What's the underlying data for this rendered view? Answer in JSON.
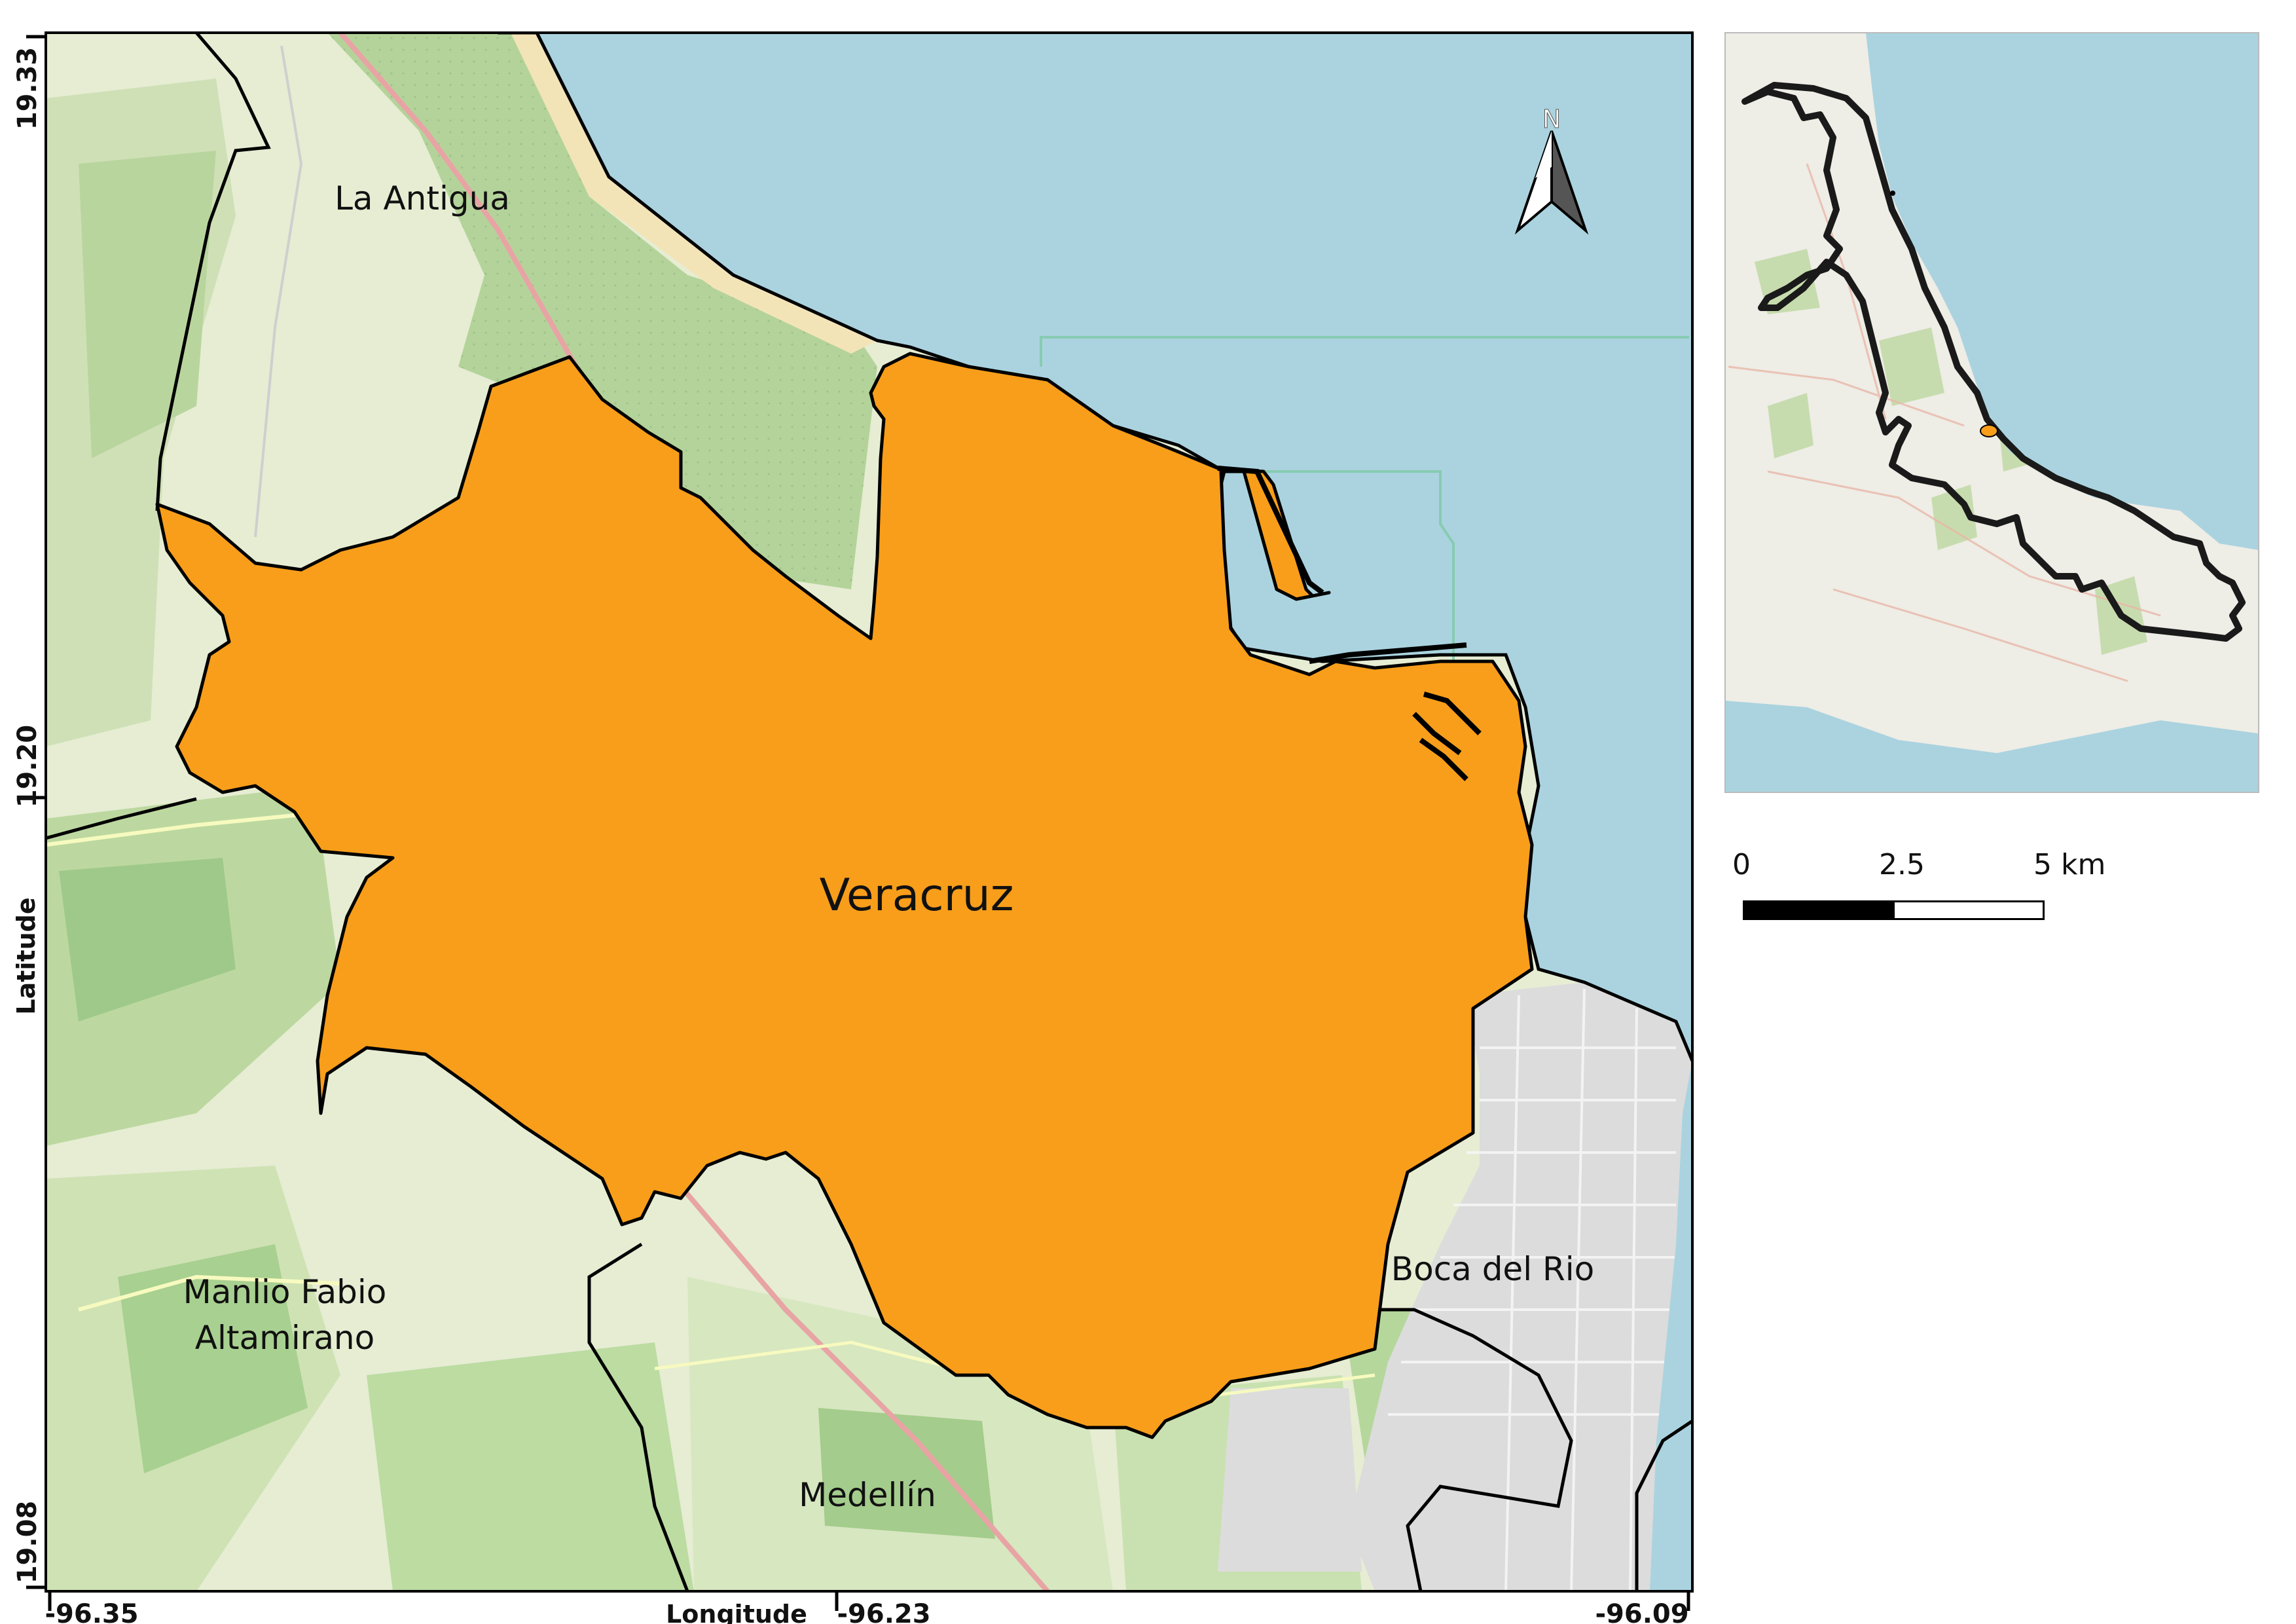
{
  "map": {
    "municipalities": {
      "focus": "Veracruz",
      "la_antigua": "La Antigua",
      "manlio_line1": "Manlio Fabio",
      "manlio_line2": "Altamirano",
      "medellin": "Medellín",
      "boca_del_rio": "Boca del Rio"
    },
    "colors": {
      "focus_fill": "#f89e1a",
      "sea": "#aad3df",
      "land": "#f2efe9",
      "forest": "#add19e",
      "urban": "#e0dfdf",
      "boundary": "#000000"
    },
    "axes": {
      "x_label": "Longitude",
      "y_label": "Latitude",
      "x_ticks": [
        "-96.35",
        "-96.23",
        "-96.09"
      ],
      "y_ticks": [
        "19.33",
        "19.20",
        "19.08"
      ]
    },
    "north_arrow": {
      "letter": "N",
      "icon": "north-arrow-icon"
    }
  },
  "scale_bar": {
    "labels": [
      "0",
      "2.5",
      "5 km"
    ]
  },
  "inset": {
    "icon": "state-locator-map",
    "note_colors": {
      "state_outline": "#1a1a1a",
      "marker": "#f89e1a"
    }
  }
}
